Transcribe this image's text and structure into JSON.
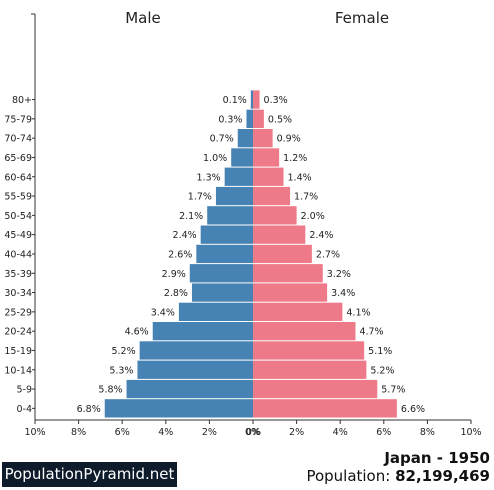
{
  "header": {
    "male_label": "Male",
    "female_label": "Female"
  },
  "footer": {
    "brand": "PopulationPyramid.net",
    "country_year": "Japan - 1950",
    "population_label": "Population:",
    "population_value": "82,199,469"
  },
  "colors": {
    "male": "#4682b4",
    "female": "#ee7989"
  },
  "chart_data": {
    "type": "bar",
    "orientation": "horizontal",
    "title": "",
    "xlim": [
      -10,
      10
    ],
    "x_ticks": [
      "10%",
      "8%",
      "6%",
      "4%",
      "2%",
      "0%",
      "0%",
      "2%",
      "4%",
      "6%",
      "8%",
      "10%"
    ],
    "categories": [
      "80+",
      "75-79",
      "70-74",
      "65-69",
      "60-64",
      "55-59",
      "50-54",
      "45-49",
      "40-44",
      "35-39",
      "30-34",
      "25-29",
      "20-24",
      "15-19",
      "10-14",
      "5-9",
      "0-4"
    ],
    "series": [
      {
        "name": "Male",
        "values": [
          0.1,
          0.3,
          0.7,
          1.0,
          1.3,
          1.7,
          2.1,
          2.4,
          2.6,
          2.9,
          2.8,
          3.4,
          4.6,
          5.2,
          5.3,
          5.8,
          6.8
        ],
        "labels": [
          "0.1%",
          "0.3%",
          "0.7%",
          "1.0%",
          "1.3%",
          "1.7%",
          "2.1%",
          "2.4%",
          "2.6%",
          "2.9%",
          "2.8%",
          "3.4%",
          "4.6%",
          "5.2%",
          "5.3%",
          "5.8%",
          "6.8%"
        ]
      },
      {
        "name": "Female",
        "values": [
          0.3,
          0.5,
          0.9,
          1.2,
          1.4,
          1.7,
          2.0,
          2.4,
          2.7,
          3.2,
          3.4,
          4.1,
          4.7,
          5.1,
          5.2,
          5.7,
          6.6
        ],
        "labels": [
          "0.3%",
          "0.5%",
          "0.9%",
          "1.2%",
          "1.4%",
          "1.7%",
          "2.0%",
          "2.4%",
          "2.7%",
          "3.2%",
          "3.4%",
          "4.1%",
          "4.7%",
          "5.1%",
          "5.2%",
          "5.7%",
          "6.6%"
        ]
      }
    ]
  }
}
